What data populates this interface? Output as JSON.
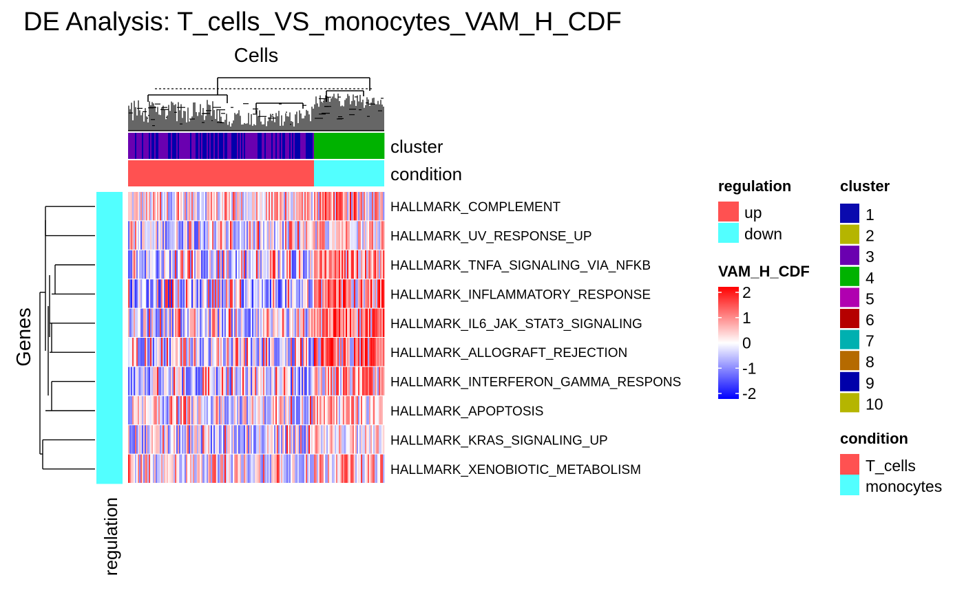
{
  "chart_data": {
    "type": "heatmap",
    "title": "DE Analysis: T_cells_VS_monocytes_VAM_H_CDF",
    "column_title": "Cells",
    "row_title": "Genes",
    "row_annotation_label": "regulation",
    "annotation_labels": {
      "cluster": "cluster",
      "condition": "condition"
    },
    "rows": [
      "HALLMARK_COMPLEMENT",
      "HALLMARK_UV_RESPONSE_UP",
      "HALLMARK_TNFA_SIGNALING_VIA_NFKB",
      "HALLMARK_INFLAMMATORY_RESPONSE",
      "HALLMARK_IL6_JAK_STAT3_SIGNALING",
      "HALLMARK_ALLOGRAFT_REJECTION",
      "HALLMARK_INTERFERON_GAMMA_RESPONS",
      "HALLMARK_APOPTOSIS",
      "HALLMARK_KRAS_SIGNALING_UP",
      "HALLMARK_XENOBIOTIC_METABOLISM"
    ],
    "row_regulation": [
      "down",
      "down",
      "down",
      "down",
      "down",
      "down",
      "down",
      "down",
      "down",
      "down"
    ],
    "column_groups": [
      {
        "condition": "T_cells",
        "clusters": [
          "3",
          "9"
        ],
        "fraction": 0.727
      },
      {
        "condition": "monocytes",
        "clusters": [
          "4"
        ],
        "fraction": 0.273
      }
    ],
    "group_mean_scores": {
      "T_cells": [
        0.1,
        -0.3,
        -0.4,
        -0.6,
        -0.3,
        -0.4,
        -0.5,
        -0.1,
        -0.3,
        0.0
      ],
      "monocytes": [
        1.0,
        0.6,
        1.0,
        1.3,
        1.2,
        1.3,
        0.8,
        0.6,
        0.3,
        0.7
      ]
    },
    "color_scale": {
      "name": "VAM_H_CDF",
      "breaks": [
        -2,
        -1,
        0,
        1,
        2
      ],
      "tick_labels": [
        "2",
        "1",
        "0",
        "-1",
        "-2"
      ],
      "colors": [
        "#0000ff",
        "#ffffff",
        "#ff0000"
      ]
    },
    "legends": {
      "regulation": {
        "title": "regulation",
        "entries": [
          {
            "label": "up",
            "color": "#ff5151"
          },
          {
            "label": "down",
            "color": "#52ffff"
          }
        ]
      },
      "cluster": {
        "title": "cluster",
        "entries": [
          {
            "label": "1",
            "color": "#0a0aae"
          },
          {
            "label": "2",
            "color": "#b5b500"
          },
          {
            "label": "3",
            "color": "#6a00b0"
          },
          {
            "label": "4",
            "color": "#00b200"
          },
          {
            "label": "5",
            "color": "#b000b0"
          },
          {
            "label": "6",
            "color": "#b50000"
          },
          {
            "label": "7",
            "color": "#00b0b0"
          },
          {
            "label": "8",
            "color": "#b56a00"
          },
          {
            "label": "9",
            "color": "#0000aa"
          },
          {
            "label": "10",
            "color": "#b5b500"
          }
        ]
      },
      "condition": {
        "title": "condition",
        "entries": [
          {
            "label": "T_cells",
            "color": "#ff5151"
          },
          {
            "label": "monocytes",
            "color": "#52ffff"
          }
        ]
      }
    }
  }
}
